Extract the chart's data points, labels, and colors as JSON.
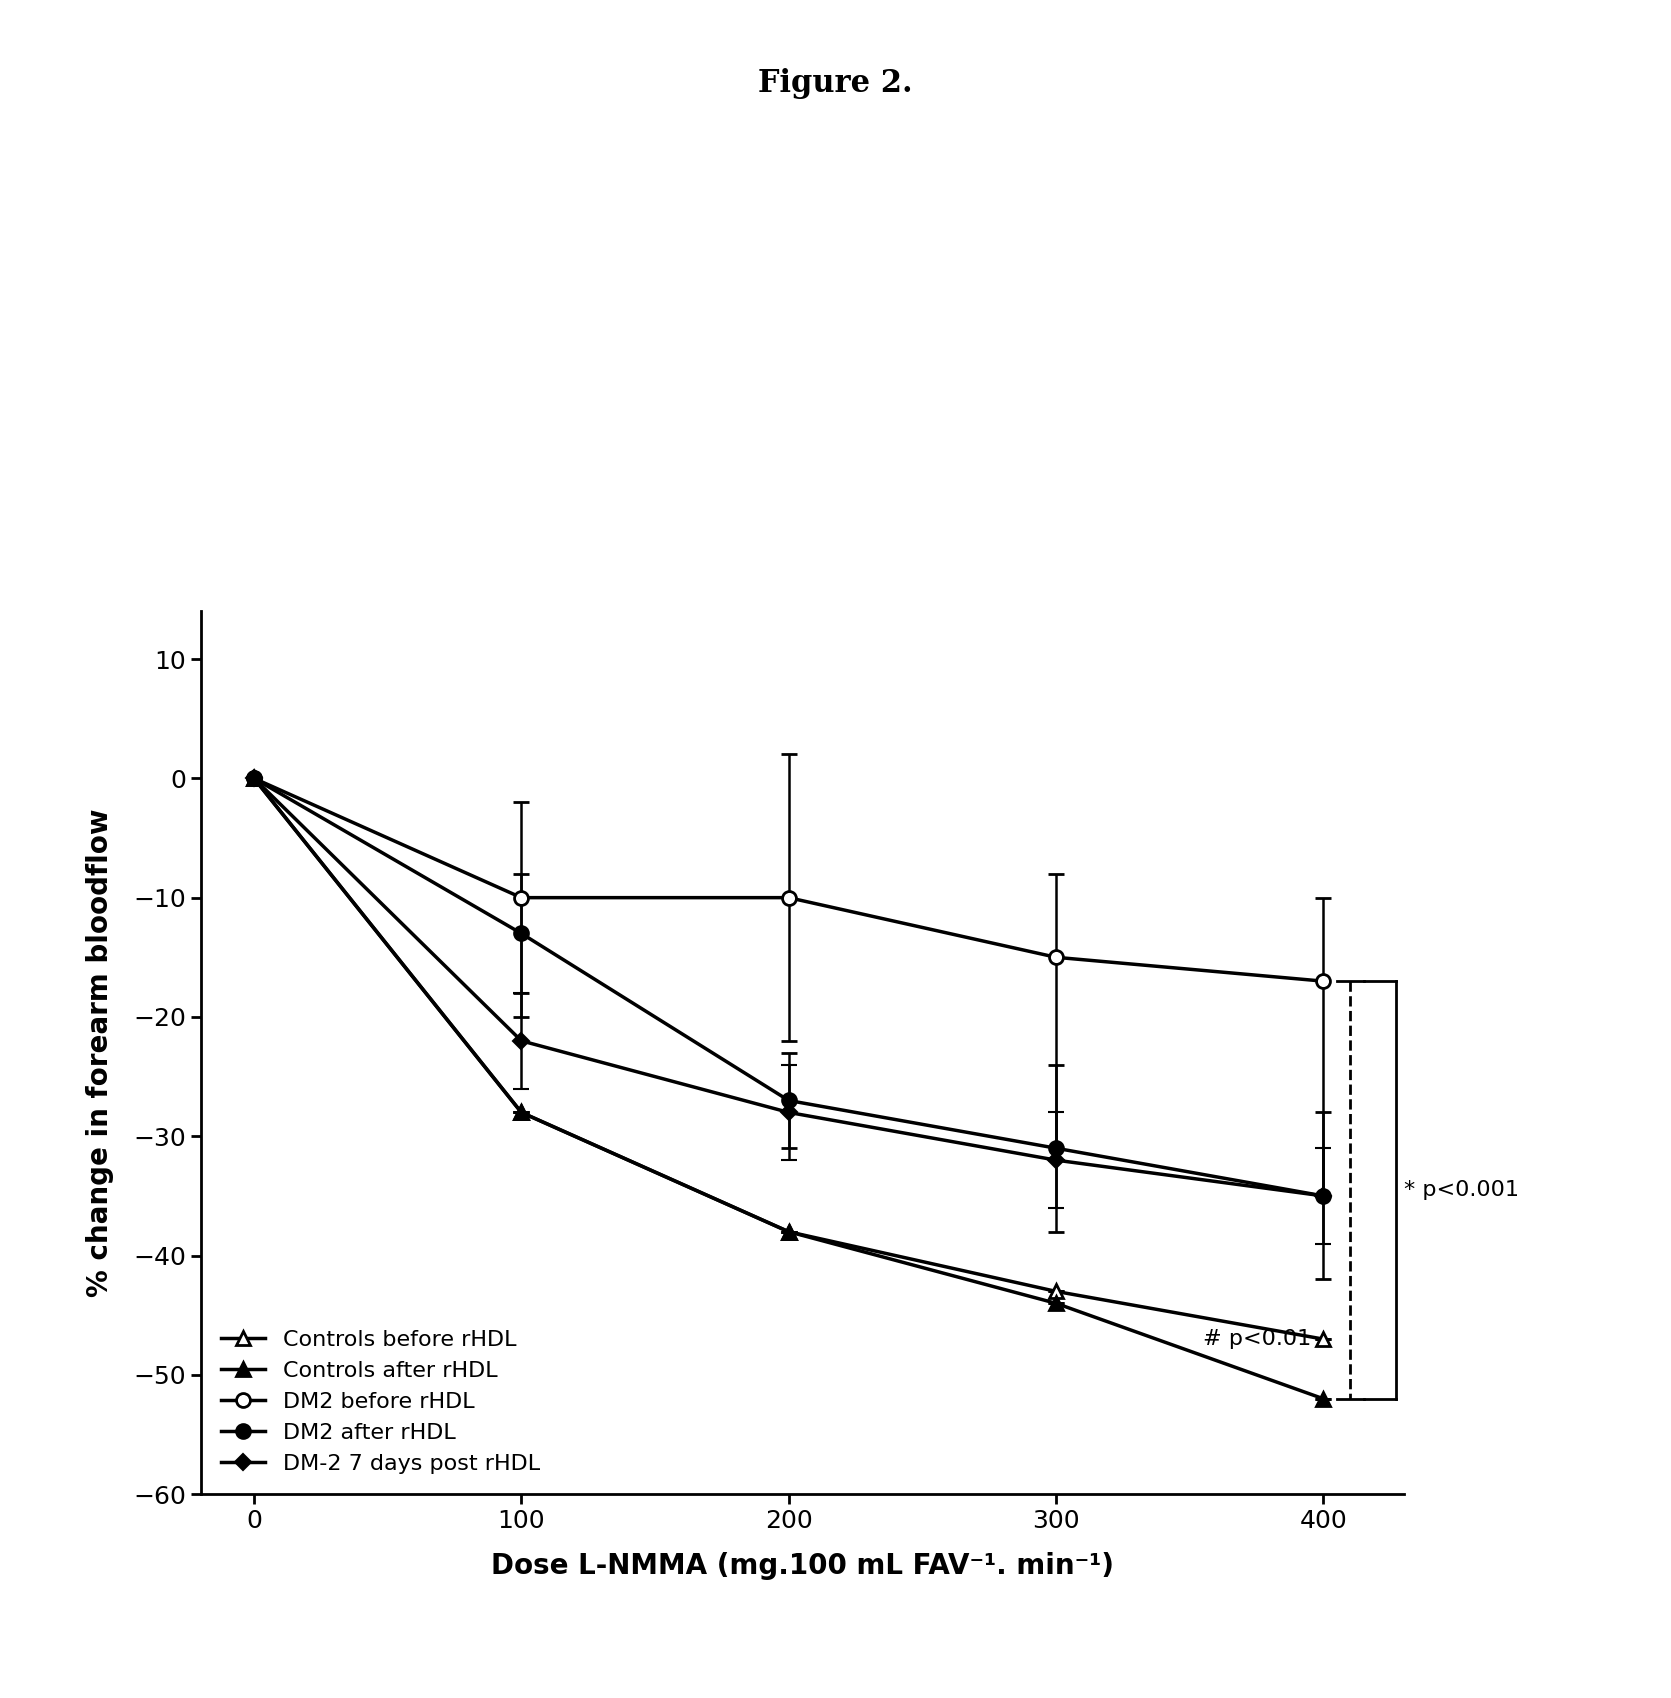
{
  "title": "Figure 2.",
  "xlabel": "Dose L-NMMA (mg.100 mL FAV⁻¹. min⁻¹)",
  "ylabel": "% change in forearm bloodflow",
  "x": [
    0,
    100,
    200,
    300,
    400
  ],
  "ctrl_before_y": [
    0,
    -28,
    -38,
    -43,
    -47
  ],
  "ctrl_before_yerr_lo": [
    0,
    0,
    0,
    0,
    0
  ],
  "ctrl_before_yerr_hi": [
    0,
    0,
    0,
    0,
    0
  ],
  "ctrl_after_y": [
    0,
    -28,
    -38,
    -44,
    -52
  ],
  "ctrl_after_yerr_lo": [
    0,
    0,
    0,
    0,
    0
  ],
  "ctrl_after_yerr_hi": [
    0,
    0,
    0,
    0,
    0
  ],
  "dm2_before_y": [
    0,
    -10,
    -10,
    -15,
    -17
  ],
  "dm2_before_yerr_lo": [
    0,
    10,
    12,
    17,
    18
  ],
  "dm2_before_yerr_hi": [
    0,
    8,
    12,
    7,
    7
  ],
  "dm2_after_y": [
    0,
    -13,
    -27,
    -31,
    -35
  ],
  "dm2_after_yerr_lo": [
    0,
    5,
    4,
    7,
    7
  ],
  "dm2_after_yerr_hi": [
    0,
    5,
    4,
    7,
    7
  ],
  "dm2_7days_y": [
    0,
    -22,
    -28,
    -32,
    -35
  ],
  "dm2_7days_yerr_lo": [
    0,
    4,
    4,
    4,
    4
  ],
  "dm2_7days_yerr_hi": [
    0,
    4,
    4,
    4,
    4
  ],
  "ylim": [
    -60,
    10
  ],
  "yticks": [
    10,
    0,
    -10,
    -20,
    -30,
    -40,
    -50,
    -60
  ],
  "xticks": [
    0,
    100,
    200,
    300,
    400
  ],
  "annotation_hash": "# p<0.01",
  "annotation_star": "* p<0.001",
  "background_color": "#ffffff",
  "title_fontsize": 22,
  "label_fontsize": 20,
  "tick_fontsize": 18,
  "legend_fontsize": 16
}
